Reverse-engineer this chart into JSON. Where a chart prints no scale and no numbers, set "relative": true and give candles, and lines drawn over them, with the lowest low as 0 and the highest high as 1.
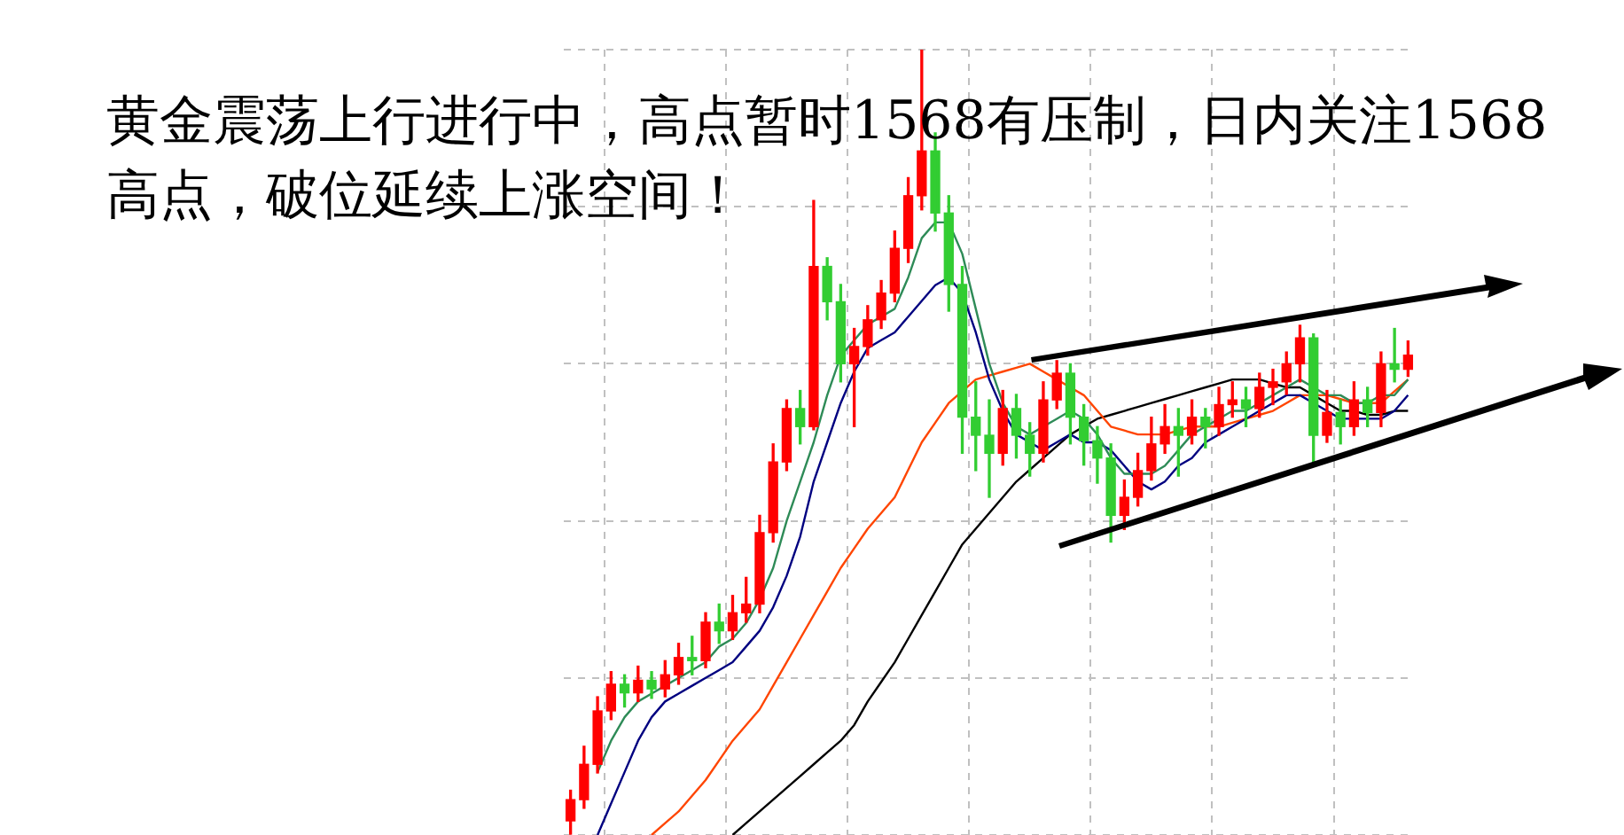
{
  "chart_data": {
    "type": "candlestick",
    "relative": true,
    "grid": true,
    "legend": false,
    "annotations": [
      "黄金震荡上行进行中，高点暂时1568有压制，日内关注1568高点，破位延续上涨空间！"
    ],
    "categories": [
      null,
      null,
      null,
      null,
      null,
      null,
      null,
      null,
      null,
      null,
      null,
      null,
      null,
      null,
      null,
      null,
      null,
      null,
      null,
      null,
      null,
      null,
      null,
      null,
      null,
      null,
      null,
      null,
      null,
      null,
      null,
      null,
      null,
      null,
      null,
      null,
      null,
      null,
      null,
      null,
      null,
      null,
      null,
      null,
      null,
      null,
      null,
      null,
      null,
      null,
      null,
      null,
      null,
      null,
      null,
      null,
      null,
      null,
      null,
      null,
      null,
      null,
      null
    ],
    "ohlc": [
      [
        0.018,
        0.057,
        0,
        0.045
      ],
      [
        0.045,
        0.113,
        0.034,
        0.09
      ],
      [
        0.09,
        0.176,
        0.079,
        0.158
      ],
      [
        0.158,
        0.208,
        0.147,
        0.192
      ],
      [
        0.192,
        0.204,
        0.163,
        0.181
      ],
      [
        0.181,
        0.215,
        0.17,
        0.197
      ],
      [
        0.197,
        0.208,
        0.174,
        0.186
      ],
      [
        0.186,
        0.222,
        0.176,
        0.204
      ],
      [
        0.204,
        0.244,
        0.192,
        0.226
      ],
      [
        0.226,
        0.253,
        0.204,
        0.222
      ],
      [
        0.222,
        0.283,
        0.213,
        0.271
      ],
      [
        0.271,
        0.294,
        0.244,
        0.26
      ],
      [
        0.26,
        0.305,
        0.249,
        0.283
      ],
      [
        0.283,
        0.328,
        0.271,
        0.294
      ],
      [
        0.294,
        0.407,
        0.283,
        0.385
      ],
      [
        0.385,
        0.498,
        0.373,
        0.475
      ],
      [
        0.475,
        0.554,
        0.464,
        0.543
      ],
      [
        0.543,
        0.566,
        0.498,
        0.52
      ],
      [
        0.52,
        0.808,
        0.516,
        0.724
      ],
      [
        0.724,
        0.735,
        0.656,
        0.679
      ],
      [
        0.679,
        0.701,
        0.577,
        0.6
      ],
      [
        0.6,
        0.645,
        0.52,
        0.622
      ],
      [
        0.622,
        0.674,
        0.611,
        0.656
      ],
      [
        0.656,
        0.706,
        0.645,
        0.69
      ],
      [
        0.69,
        0.769,
        0.679,
        0.747
      ],
      [
        0.747,
        0.837,
        0.729,
        0.814
      ],
      [
        0.814,
        1,
        0.796,
        0.871
      ],
      [
        0.871,
        0.894,
        0.769,
        0.792
      ],
      [
        0.792,
        0.814,
        0.667,
        0.701
      ],
      [
        0.701,
        0.724,
        0.486,
        0.532
      ],
      [
        0.532,
        0.577,
        0.464,
        0.509
      ],
      [
        0.509,
        0.554,
        0.43,
        0.486
      ],
      [
        0.486,
        0.566,
        0.471,
        0.543
      ],
      [
        0.543,
        0.561,
        0.48,
        0.509
      ],
      [
        0.509,
        0.525,
        0.457,
        0.486
      ],
      [
        0.486,
        0.577,
        0.475,
        0.554
      ],
      [
        0.554,
        0.604,
        0.543,
        0.588
      ],
      [
        0.588,
        0.6,
        0.498,
        0.532
      ],
      [
        0.532,
        0.548,
        0.471,
        0.502
      ],
      [
        0.502,
        0.52,
        0.448,
        0.48
      ],
      [
        0.48,
        0.498,
        0.373,
        0.407
      ],
      [
        0.407,
        0.452,
        0.389,
        0.43
      ],
      [
        0.43,
        0.486,
        0.419,
        0.464
      ],
      [
        0.464,
        0.532,
        0.452,
        0.498
      ],
      [
        0.498,
        0.548,
        0.486,
        0.52
      ],
      [
        0.52,
        0.543,
        0.457,
        0.509
      ],
      [
        0.509,
        0.554,
        0.498,
        0.532
      ],
      [
        0.532,
        0.543,
        0.493,
        0.52
      ],
      [
        0.52,
        0.57,
        0.509,
        0.548
      ],
      [
        0.548,
        0.577,
        0.532,
        0.554
      ],
      [
        0.554,
        0.57,
        0.52,
        0.543
      ],
      [
        0.543,
        0.588,
        0.532,
        0.57
      ],
      [
        0.57,
        0.593,
        0.548,
        0.577
      ],
      [
        0.577,
        0.615,
        0.561,
        0.6
      ],
      [
        0.6,
        0.649,
        0.577,
        0.633
      ],
      [
        0.633,
        0.638,
        0.475,
        0.509
      ],
      [
        0.509,
        0.566,
        0.5,
        0.538
      ],
      [
        0.538,
        0.554,
        0.498,
        0.52
      ],
      [
        0.52,
        0.577,
        0.509,
        0.554
      ],
      [
        0.554,
        0.57,
        0.52,
        0.538
      ],
      [
        0.538,
        0.615,
        0.52,
        0.6
      ],
      [
        0.6,
        0.645,
        0.577,
        0.593
      ],
      [
        0.593,
        0.629,
        0.584,
        0.611
      ]
    ],
    "series": [
      {
        "type": "line",
        "color": "#2e8b57",
        "values": [
          null,
          null,
          0.08,
          0.12,
          0.15,
          0.17,
          0.18,
          0.19,
          0.2,
          0.21,
          0.22,
          0.24,
          0.25,
          0.27,
          0.3,
          0.34,
          0.4,
          0.45,
          0.5,
          0.56,
          0.61,
          0.63,
          0.65,
          0.66,
          0.67,
          0.71,
          0.76,
          0.78,
          0.78,
          0.74,
          0.67,
          0.6,
          0.55,
          0.52,
          0.51,
          0.52,
          0.53,
          0.54,
          0.53,
          0.51,
          0.48,
          0.46,
          0.46,
          0.46,
          0.47,
          0.49,
          0.51,
          0.52,
          0.53,
          0.54,
          0.54,
          0.55,
          0.56,
          0.57,
          0.58,
          0.57,
          0.56,
          0.56,
          0.55,
          0.55,
          0.56,
          0.56,
          0.58
        ]
      },
      {
        "type": "line",
        "color": "#000080",
        "values": [
          null,
          null,
          0,
          0.04,
          0.08,
          0.12,
          0.15,
          0.17,
          0.18,
          0.19,
          0.2,
          0.21,
          0.22,
          0.24,
          0.26,
          0.29,
          0.33,
          0.38,
          0.45,
          0.5,
          0.55,
          0.59,
          0.62,
          0.63,
          0.64,
          0.66,
          0.68,
          0.7,
          0.71,
          0.69,
          0.64,
          0.58,
          0.54,
          0.51,
          0.5,
          0.49,
          0.5,
          0.51,
          0.5,
          0.5,
          0.49,
          0.47,
          0.45,
          0.44,
          0.45,
          0.47,
          0.48,
          0.5,
          0.51,
          0.52,
          0.53,
          0.54,
          0.55,
          0.56,
          0.56,
          0.55,
          0.54,
          0.53,
          0.53,
          0.53,
          0.53,
          0.54,
          0.56
        ]
      },
      {
        "type": "line",
        "color": "#ff4500",
        "values": [
          null,
          null,
          null,
          null,
          null,
          null,
          0,
          0.015,
          0.03,
          0.05,
          0.07,
          0.095,
          0.12,
          0.14,
          0.16,
          0.19,
          0.22,
          0.25,
          0.28,
          0.31,
          0.34,
          0.365,
          0.39,
          0.41,
          0.43,
          0.465,
          0.5,
          0.525,
          0.55,
          0.565,
          0.58,
          0.585,
          0.59,
          0.595,
          0.6,
          0.59,
          0.58,
          0.57,
          0.56,
          0.54,
          0.52,
          0.515,
          0.51,
          0.51,
          0.51,
          0.515,
          0.52,
          0.52,
          0.52,
          0.525,
          0.53,
          0.535,
          0.54,
          0.55,
          0.56,
          0.56,
          0.56,
          0.555,
          0.55,
          0.55,
          0.55,
          0.565,
          0.58
        ]
      },
      {
        "type": "line",
        "color": "#000000",
        "values": [
          null,
          null,
          null,
          null,
          null,
          null,
          null,
          null,
          null,
          null,
          null,
          null,
          0,
          0.015,
          0.03,
          0.045,
          0.06,
          0.075,
          0.09,
          0.105,
          0.12,
          0.14,
          0.17,
          0.195,
          0.22,
          0.25,
          0.28,
          0.31,
          0.34,
          0.37,
          0.39,
          0.41,
          0.43,
          0.45,
          0.465,
          0.48,
          0.495,
          0.51,
          0.52,
          0.53,
          0.535,
          0.54,
          0.545,
          0.55,
          0.555,
          0.56,
          0.565,
          0.57,
          0.575,
          0.58,
          0.58,
          0.58,
          0.575,
          0.57,
          0.57,
          0.56,
          0.55,
          0.54,
          0.54,
          0.535,
          0.535,
          0.54,
          0.54
        ]
      }
    ]
  }
}
